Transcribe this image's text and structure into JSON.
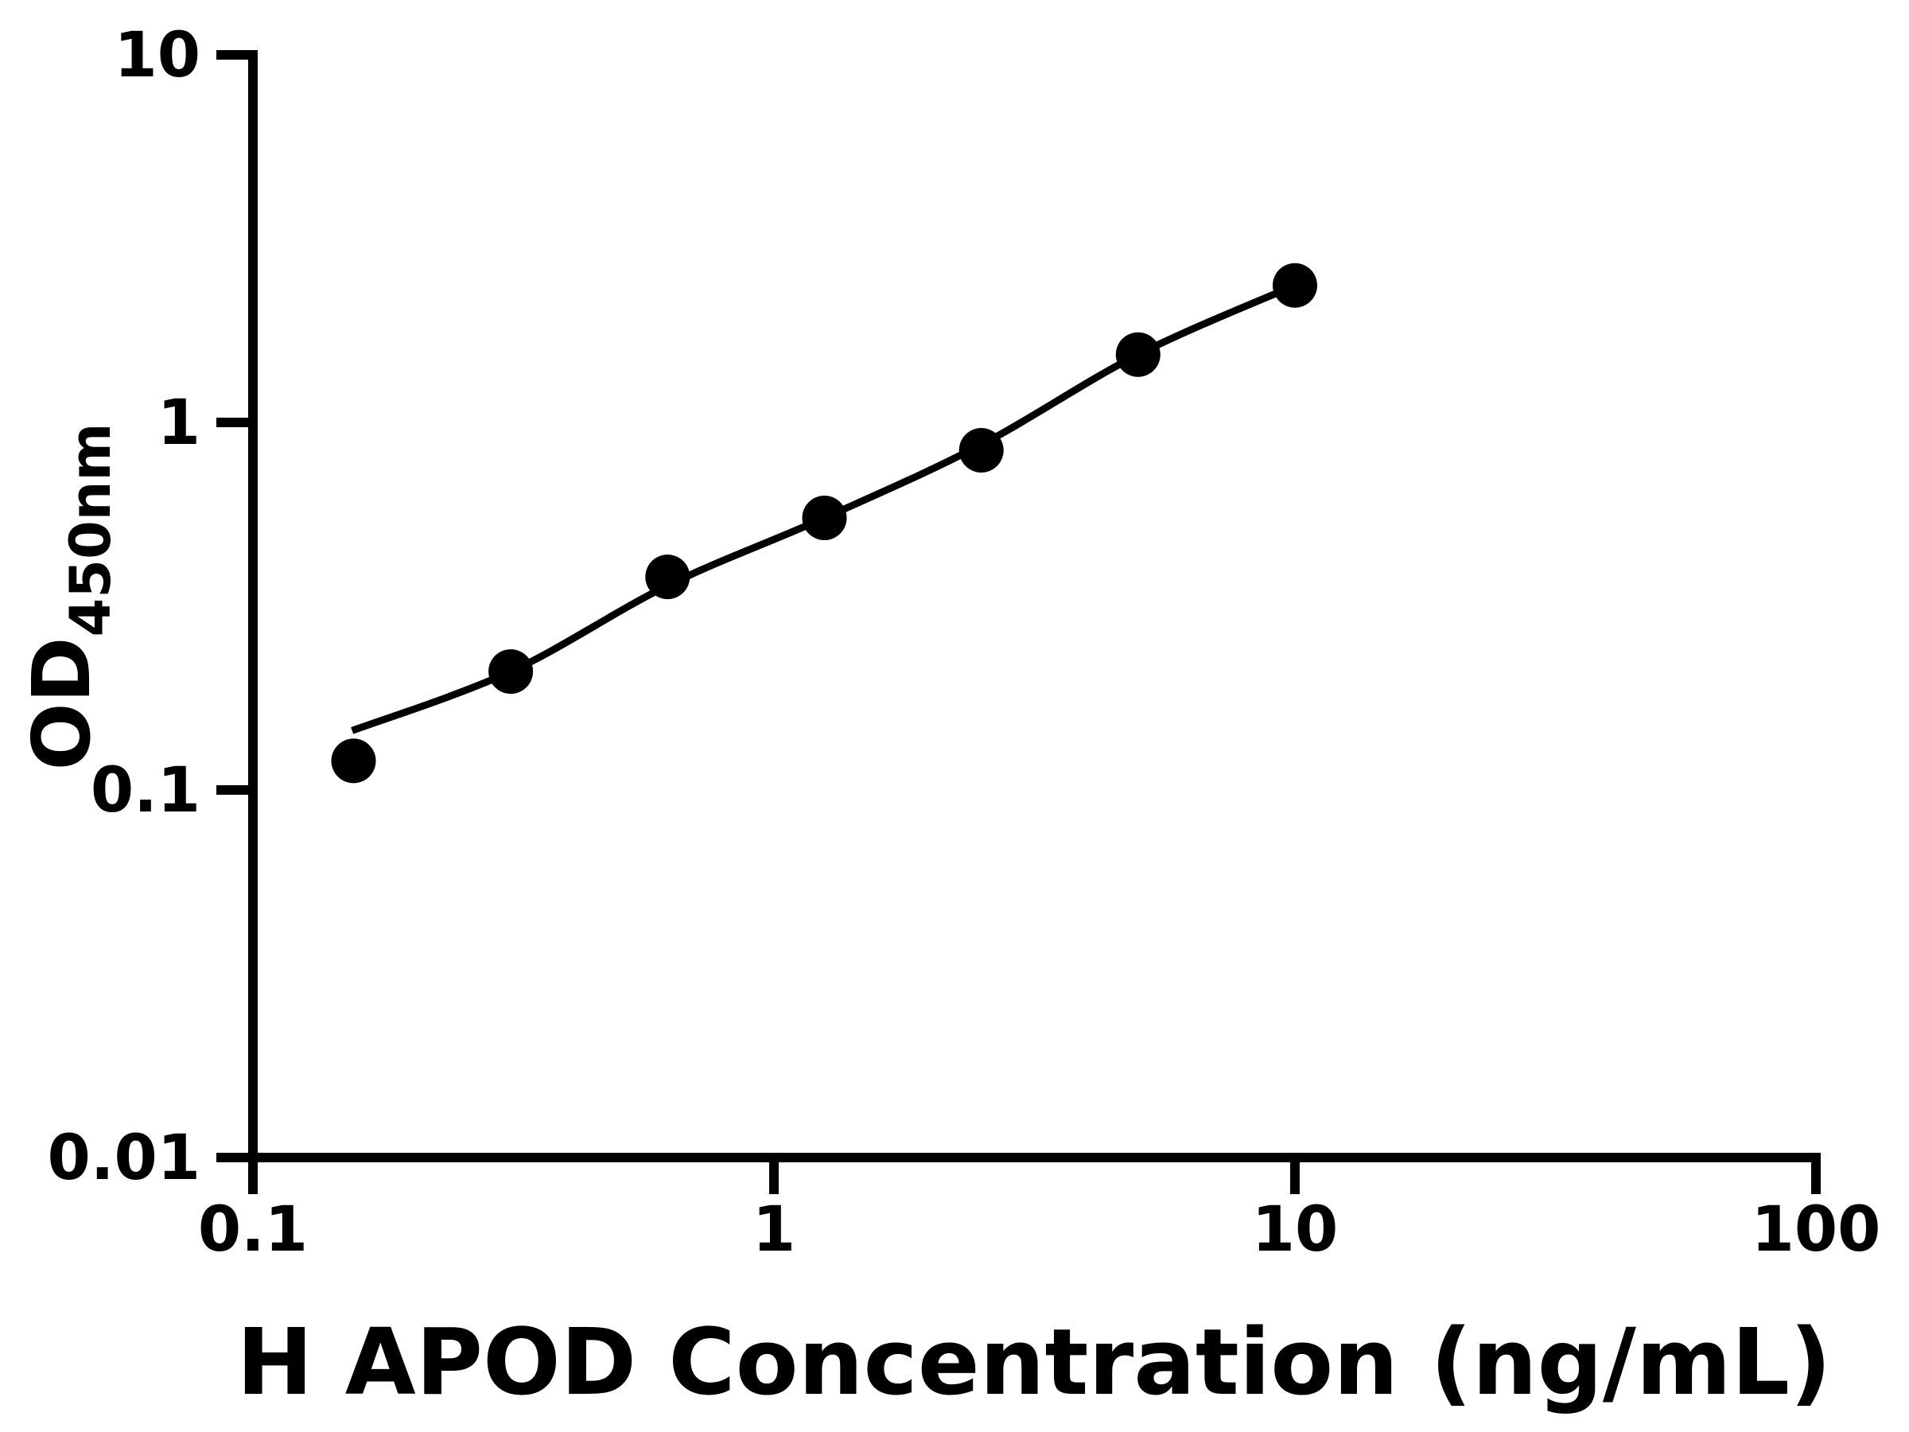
{
  "figure": {
    "background": "#ffffff",
    "foreground": "#000000"
  },
  "chart_data": {
    "type": "scatter",
    "title": "",
    "xlabel": "H APOD Concentration (ng/mL)",
    "ylabel_main": "OD",
    "ylabel_subscript": "450nm",
    "x_scale": "log",
    "y_scale": "log",
    "xlim": [
      0.1,
      100
    ],
    "ylim": [
      0.01,
      10
    ],
    "x_tick_values": [
      0.1,
      1,
      10,
      100
    ],
    "x_tick_labels": [
      "0.1",
      "1",
      "10",
      "100"
    ],
    "y_tick_values": [
      0.01,
      0.1,
      1,
      10
    ],
    "y_tick_labels": [
      "0.01",
      "0.1",
      "1",
      "10"
    ],
    "grid": false,
    "legend": null,
    "axis_color": "#000000",
    "marker_color": "#000000",
    "curve_color": "#000000",
    "series": [
      {
        "marker": "circle",
        "color": "#000000",
        "points": [
          {
            "x": 0.156,
            "y": 0.12
          },
          {
            "x": 0.3125,
            "y": 0.21
          },
          {
            "x": 0.625,
            "y": 0.38
          },
          {
            "x": 1.25,
            "y": 0.55
          },
          {
            "x": 2.5,
            "y": 0.84
          },
          {
            "x": 5,
            "y": 1.53
          },
          {
            "x": 10,
            "y": 2.36
          }
        ]
      }
    ],
    "fit_curve": {
      "color": "#000000",
      "points": [
        {
          "x": 0.155,
          "y": 0.145
        },
        {
          "x": 0.3125,
          "y": 0.21
        },
        {
          "x": 0.625,
          "y": 0.36
        },
        {
          "x": 1.25,
          "y": 0.55
        },
        {
          "x": 2.5,
          "y": 0.87
        },
        {
          "x": 5,
          "y": 1.53
        },
        {
          "x": 10,
          "y": 2.36
        }
      ]
    }
  }
}
